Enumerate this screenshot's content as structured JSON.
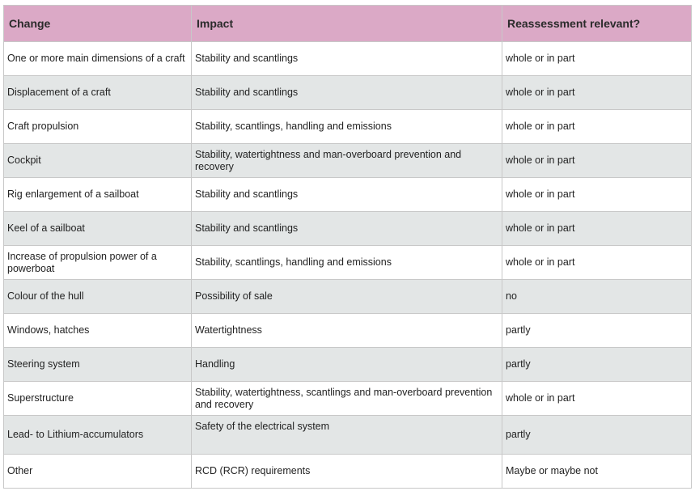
{
  "table": {
    "headers": [
      "Change",
      "Impact",
      "Reassessment relevant?"
    ],
    "rows": [
      [
        "One or more main dimensions of a craft",
        "Stability and scantlings",
        "whole or in part"
      ],
      [
        "Displacement of a craft",
        "Stability and scantlings",
        "whole or in part"
      ],
      [
        "Craft propulsion",
        "Stability, scantlings, handling and emissions",
        "whole or in part"
      ],
      [
        "Cockpit",
        "Stability, watertightness and man-overboard prevention and recovery",
        "whole or in part"
      ],
      [
        "Rig enlargement of a sailboat",
        "Stability and scantlings",
        "whole or in part"
      ],
      [
        "Keel of a sailboat",
        "Stability and scantlings",
        "whole or in part"
      ],
      [
        "Increase of propulsion power of a powerboat",
        "Stability, scantlings, handling and emissions",
        "whole or in part"
      ],
      [
        "Colour of the hull",
        "Possibility of sale",
        "no"
      ],
      [
        "Windows, hatches",
        "Watertightness",
        "partly"
      ],
      [
        "Steering system",
        "Handling",
        "partly"
      ],
      [
        "Superstructure",
        "Stability, watertightness, scantlings and man-overboard prevention and recovery",
        "whole or in part"
      ],
      [
        "Lead- to Lithium-accumulators",
        "Safety of the electrical system",
        "partly"
      ],
      [
        "Other",
        "RCD (RCR) requirements",
        "Maybe or maybe not"
      ]
    ]
  }
}
